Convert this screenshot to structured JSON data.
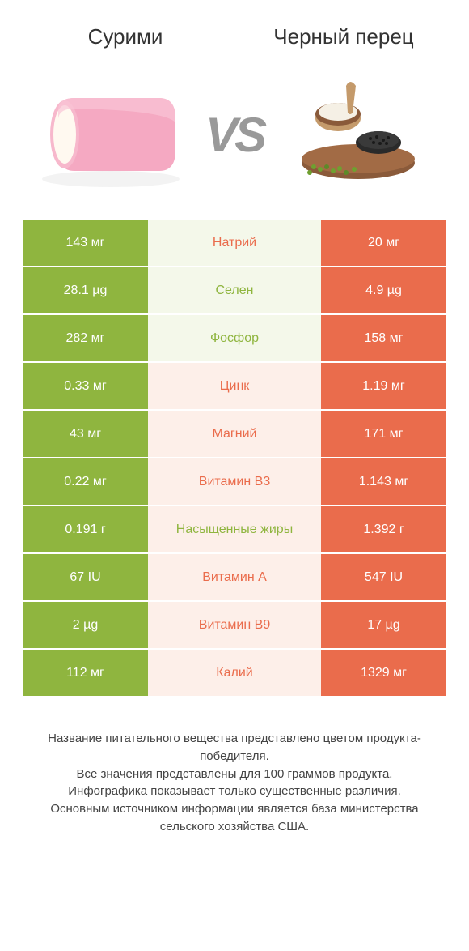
{
  "header": {
    "left": "Сурими",
    "right": "Черный перец",
    "vs": "VS"
  },
  "colors": {
    "leftBg": "#8fb53f",
    "rightBg": "#ea6c4c",
    "midBgEven": "#f4f8ea",
    "midBgOdd": "#fdefe9"
  },
  "rows": [
    {
      "left": "143 мг",
      "mid": "Натрий",
      "right": "20 мг",
      "midColor": "#ea6c4c",
      "winner": "left"
    },
    {
      "left": "28.1 µg",
      "mid": "Селен",
      "right": "4.9 µg",
      "midColor": "#8fb53f",
      "winner": "left"
    },
    {
      "left": "282 мг",
      "mid": "Фосфор",
      "right": "158 мг",
      "midColor": "#8fb53f",
      "winner": "left"
    },
    {
      "left": "0.33 мг",
      "mid": "Цинк",
      "right": "1.19 мг",
      "midColor": "#ea6c4c",
      "winner": "right"
    },
    {
      "left": "43 мг",
      "mid": "Магний",
      "right": "171 мг",
      "midColor": "#ea6c4c",
      "winner": "right"
    },
    {
      "left": "0.22 мг",
      "mid": "Витамин B3",
      "right": "1.143 мг",
      "midColor": "#ea6c4c",
      "winner": "right"
    },
    {
      "left": "0.191 г",
      "mid": "Насыщенные жиры",
      "right": "1.392 г",
      "midColor": "#8fb53f",
      "winner": "right"
    },
    {
      "left": "67 IU",
      "mid": "Витамин A",
      "right": "547 IU",
      "midColor": "#ea6c4c",
      "winner": "right"
    },
    {
      "left": "2 µg",
      "mid": "Витамин B9",
      "right": "17 µg",
      "midColor": "#ea6c4c",
      "winner": "right"
    },
    {
      "left": "112 мг",
      "mid": "Калий",
      "right": "1329 мг",
      "midColor": "#ea6c4c",
      "winner": "right"
    }
  ],
  "footer": {
    "line1": "Название питательного вещества представлено цветом продукта-победителя.",
    "line2": "Все значения представлены для 100 граммов продукта.",
    "line3": "Инфографика показывает только существенные различия.",
    "line4": "Основным источником информации является база министерства сельского хозяйства США."
  }
}
